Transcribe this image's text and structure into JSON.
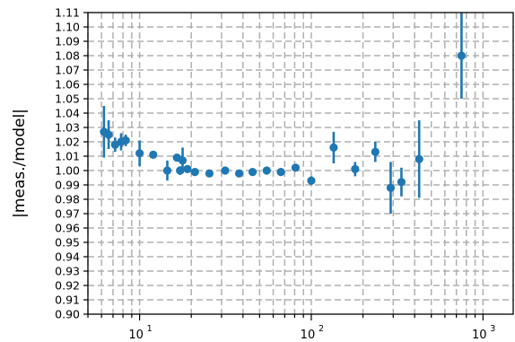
{
  "chart_data": {
    "type": "scatter",
    "title": "",
    "xlabel": "",
    "ylabel": "|meas./model|",
    "xscale": "log",
    "xlim": [
      5,
      1500
    ],
    "ylim": [
      0.9,
      1.11
    ],
    "grid": true,
    "grid_style": "dashed",
    "legend": "none",
    "marker_color": "#1f77b4",
    "ytick_labels": [
      "0.90",
      "0.91",
      "0.92",
      "0.93",
      "0.94",
      "0.95",
      "0.96",
      "0.97",
      "0.98",
      "0.99",
      "1.00",
      "1.01",
      "1.02",
      "1.03",
      "1.04",
      "1.05",
      "1.06",
      "1.07",
      "1.08",
      "1.09",
      "1.10",
      "1.11"
    ],
    "xtick_major": [
      {
        "value": 10,
        "base": "10",
        "exp": "1"
      },
      {
        "value": 100,
        "base": "10",
        "exp": "2"
      },
      {
        "value": 1000,
        "base": "10",
        "exp": "3"
      }
    ],
    "points": [
      {
        "x": 6.2,
        "y": 1.027,
        "yerr": 0.018
      },
      {
        "x": 6.6,
        "y": 1.025,
        "yerr": 0.01
      },
      {
        "x": 7.2,
        "y": 1.018,
        "yerr": 0.005
      },
      {
        "x": 7.8,
        "y": 1.02,
        "yerr": 0.006
      },
      {
        "x": 8.3,
        "y": 1.021,
        "yerr": 0.004
      },
      {
        "x": 10.0,
        "y": 1.012,
        "yerr": 0.009
      },
      {
        "x": 12.0,
        "y": 1.011,
        "yerr": 0.002
      },
      {
        "x": 14.5,
        "y": 1.0,
        "yerr": 0.007
      },
      {
        "x": 16.5,
        "y": 1.009,
        "yerr": 0.002
      },
      {
        "x": 17.2,
        "y": 1.0,
        "yerr": 0.003
      },
      {
        "x": 17.8,
        "y": 1.007,
        "yerr": 0.009
      },
      {
        "x": 19.0,
        "y": 1.001,
        "yerr": 0.002
      },
      {
        "x": 21.0,
        "y": 0.999,
        "yerr": 0.002
      },
      {
        "x": 25.5,
        "y": 0.998,
        "yerr": 0.002
      },
      {
        "x": 31.5,
        "y": 1.0,
        "yerr": 0.002
      },
      {
        "x": 38.0,
        "y": 0.998,
        "yerr": 0.002
      },
      {
        "x": 45.5,
        "y": 0.999,
        "yerr": 0.002
      },
      {
        "x": 55.0,
        "y": 1.0,
        "yerr": 0.002
      },
      {
        "x": 66.5,
        "y": 0.999,
        "yerr": 0.002
      },
      {
        "x": 81.0,
        "y": 1.002,
        "yerr": 0.002
      },
      {
        "x": 100.0,
        "y": 0.993,
        "yerr": 0.003
      },
      {
        "x": 135.0,
        "y": 1.016,
        "yerr": 0.011
      },
      {
        "x": 180.0,
        "y": 1.001,
        "yerr": 0.005
      },
      {
        "x": 236.0,
        "y": 1.013,
        "yerr": 0.007
      },
      {
        "x": 290.0,
        "y": 0.988,
        "yerr": 0.018
      },
      {
        "x": 335.0,
        "y": 0.992,
        "yerr": 0.01
      },
      {
        "x": 425.0,
        "y": 1.008,
        "yerr": 0.027
      },
      {
        "x": 750.0,
        "y": 1.08,
        "yerr": 0.03
      }
    ]
  }
}
